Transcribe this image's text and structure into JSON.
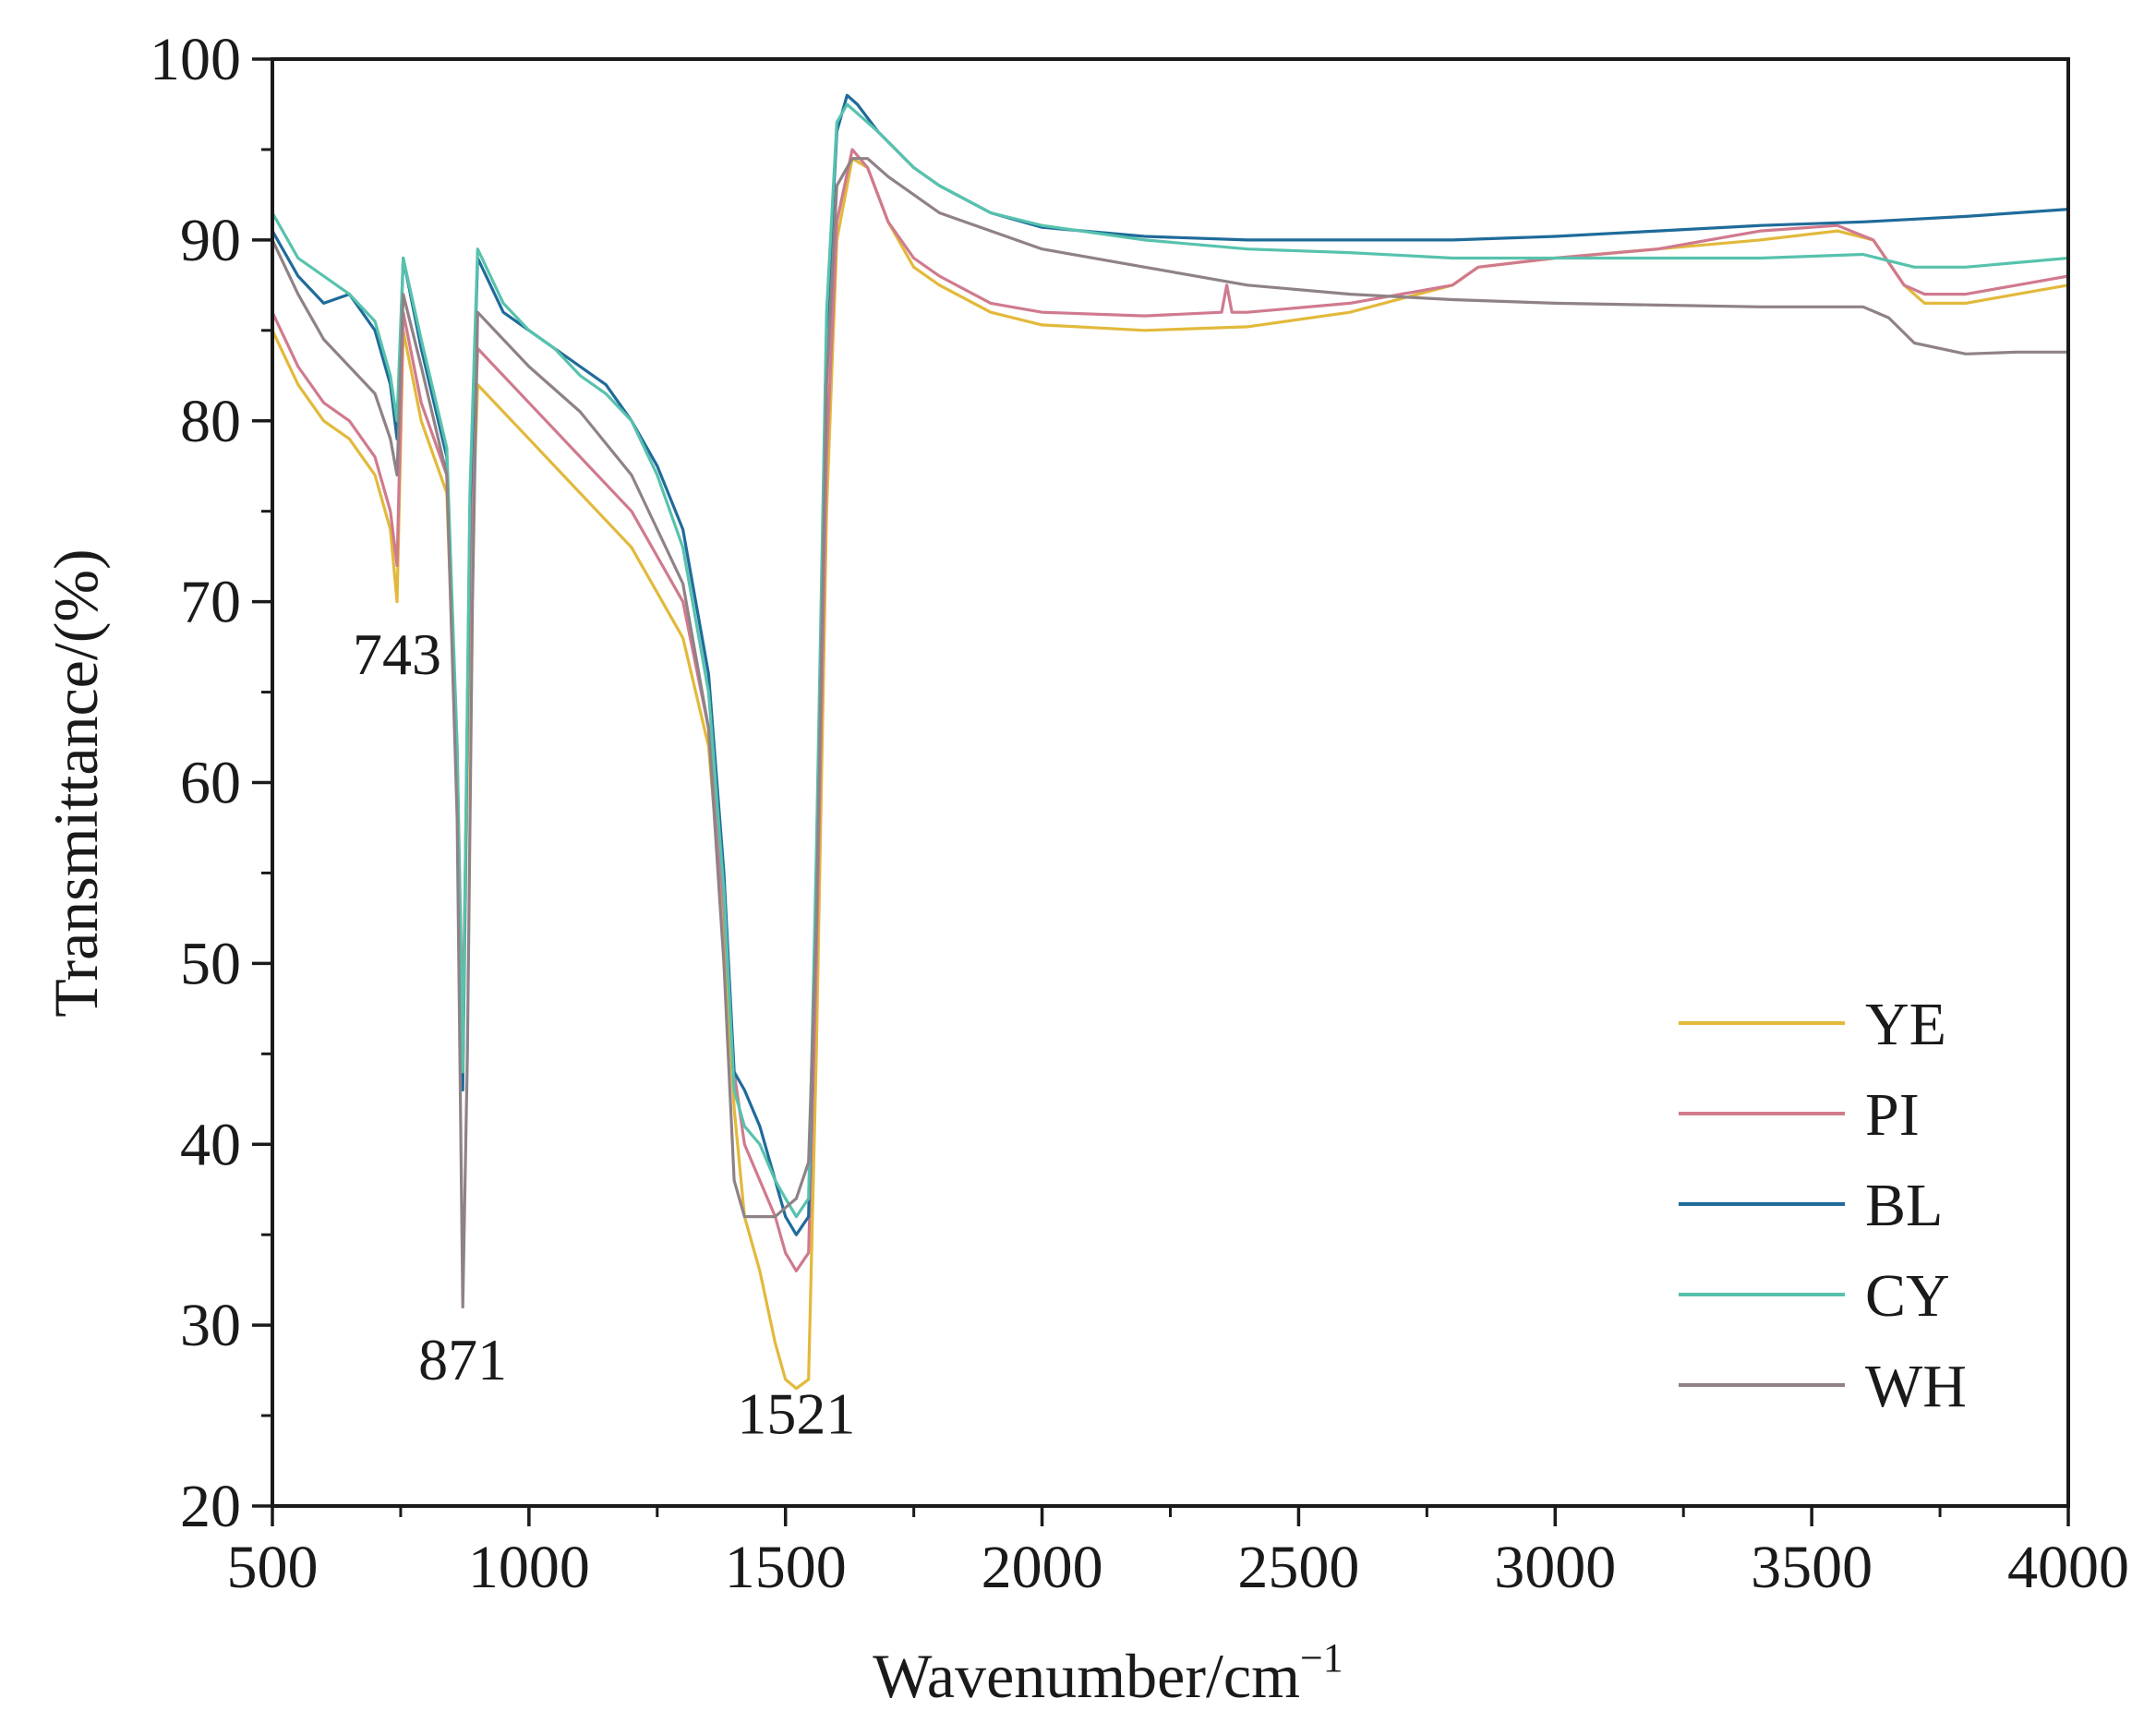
{
  "chart_data": {
    "type": "line",
    "title": "",
    "xlabel": "Wavenumber/cm",
    "xlabel_sup": "−1",
    "ylabel": "Transmittance/(%)",
    "xlim": [
      500,
      4000
    ],
    "ylim": [
      20,
      100
    ],
    "x_ticks": [
      "500",
      "1000",
      "1500",
      "2000",
      "2500",
      "3000",
      "3500",
      "4000"
    ],
    "y_ticks": [
      "20",
      "30",
      "40",
      "50",
      "60",
      "70",
      "80",
      "90",
      "100"
    ],
    "legend_position": "bottom-right",
    "annotations": [
      {
        "text": "743",
        "x": 743,
        "y": 66
      },
      {
        "text": "871",
        "x": 871,
        "y": 27
      },
      {
        "text": "1521",
        "x": 1521,
        "y": 24
      }
    ],
    "series": [
      {
        "name": "YE",
        "color": "#e2b93b",
        "x": [
          500,
          550,
          600,
          650,
          700,
          730,
          743,
          755,
          790,
          840,
          860,
          871,
          885,
          900,
          1000,
          1100,
          1200,
          1300,
          1350,
          1380,
          1400,
          1420,
          1450,
          1480,
          1500,
          1521,
          1545,
          1560,
          1580,
          1600,
          1630,
          1660,
          1700,
          1750,
          1800,
          1900,
          2000,
          2200,
          2400,
          2600,
          2800,
          2850,
          3000,
          3200,
          3400,
          3550,
          3620,
          3680,
          3720,
          3800,
          3900,
          4000
        ],
        "y": [
          85,
          82,
          80,
          79,
          77,
          74,
          70,
          85,
          80,
          76,
          60,
          44,
          70,
          82,
          79,
          76,
          73,
          68,
          62,
          52,
          42,
          36,
          33,
          29,
          27,
          26.5,
          27,
          45,
          75,
          90,
          94.5,
          94,
          91,
          88.5,
          87.5,
          86,
          85.3,
          85,
          85.2,
          86,
          87.5,
          88.5,
          89,
          89.5,
          90,
          90.5,
          90,
          87.5,
          86.5,
          86.5,
          87,
          87.5
        ]
      },
      {
        "name": "PI",
        "color": "#d07a8e",
        "x": [
          500,
          550,
          600,
          650,
          700,
          730,
          743,
          755,
          790,
          840,
          860,
          871,
          885,
          900,
          1000,
          1100,
          1200,
          1300,
          1350,
          1380,
          1400,
          1420,
          1450,
          1480,
          1500,
          1521,
          1545,
          1560,
          1580,
          1600,
          1630,
          1660,
          1700,
          1750,
          1800,
          1900,
          2000,
          2200,
          2350,
          2360,
          2370,
          2400,
          2600,
          2800,
          2850,
          3000,
          3200,
          3400,
          3550,
          3620,
          3680,
          3720,
          3800,
          3900,
          4000
        ],
        "y": [
          86,
          83,
          81,
          80,
          78,
          75,
          72,
          86,
          81,
          77,
          62,
          46,
          72,
          84,
          81,
          78,
          75,
          70,
          63,
          53,
          44,
          40,
          38,
          36,
          34,
          33,
          34,
          50,
          78,
          91,
          95,
          94,
          91,
          89,
          88,
          86.5,
          86,
          85.8,
          86,
          87.5,
          86,
          86,
          86.5,
          87.5,
          88.5,
          89,
          89.5,
          90.5,
          90.8,
          90,
          87.5,
          87,
          87,
          87.5,
          88
        ]
      },
      {
        "name": "BL",
        "color": "#1f6b9a",
        "x": [
          500,
          550,
          600,
          650,
          700,
          730,
          743,
          755,
          790,
          840,
          860,
          871,
          885,
          900,
          950,
          1000,
          1050,
          1100,
          1150,
          1200,
          1250,
          1300,
          1350,
          1380,
          1400,
          1420,
          1450,
          1480,
          1500,
          1521,
          1545,
          1560,
          1580,
          1600,
          1620,
          1640,
          1680,
          1750,
          1800,
          1900,
          2000,
          2200,
          2400,
          2600,
          2800,
          3000,
          3200,
          3400,
          3600,
          3800,
          4000
        ],
        "y": [
          90.5,
          88,
          86.5,
          87,
          85,
          82,
          79,
          89,
          84,
          78,
          60,
          43,
          75,
          89,
          86,
          85,
          84,
          83,
          82,
          80,
          77.5,
          74,
          66,
          55,
          44,
          43,
          41,
          38,
          36,
          35,
          36,
          55,
          85,
          96,
          98,
          97.5,
          96,
          94,
          93,
          91.5,
          90.7,
          90.2,
          90,
          90,
          90,
          90.2,
          90.5,
          90.8,
          91,
          91.3,
          91.7
        ]
      },
      {
        "name": "CY",
        "color": "#57c2ad",
        "x": [
          500,
          550,
          600,
          650,
          700,
          730,
          743,
          755,
          790,
          840,
          860,
          871,
          885,
          900,
          950,
          1000,
          1050,
          1100,
          1150,
          1200,
          1250,
          1300,
          1350,
          1380,
          1400,
          1420,
          1450,
          1480,
          1500,
          1521,
          1545,
          1560,
          1580,
          1600,
          1620,
          1640,
          1680,
          1750,
          1800,
          1900,
          2000,
          2200,
          2400,
          2600,
          2800,
          3000,
          3200,
          3400,
          3600,
          3700,
          3800,
          4000
        ],
        "y": [
          91.5,
          89,
          88,
          87,
          85.5,
          82.5,
          80,
          89,
          84.5,
          78.5,
          62,
          44,
          76,
          89.5,
          86.5,
          85,
          84,
          82.5,
          81.5,
          80,
          77,
          73,
          65,
          54,
          43,
          41,
          40,
          38,
          37,
          36,
          37,
          56,
          86,
          96.5,
          97.5,
          97,
          96,
          94,
          93,
          91.5,
          90.8,
          90,
          89.5,
          89.3,
          89,
          89,
          89,
          89,
          89.2,
          88.5,
          88.5,
          89
        ]
      },
      {
        "name": "WH",
        "color": "#8f8286",
        "x": [
          500,
          550,
          600,
          650,
          700,
          730,
          743,
          755,
          790,
          840,
          860,
          871,
          880,
          890,
          900,
          950,
          1000,
          1100,
          1200,
          1300,
          1350,
          1380,
          1400,
          1420,
          1450,
          1480,
          1500,
          1521,
          1545,
          1560,
          1580,
          1600,
          1630,
          1660,
          1700,
          1800,
          1900,
          2000,
          2200,
          2400,
          2600,
          2800,
          3000,
          3200,
          3400,
          3600,
          3650,
          3700,
          3800,
          3900,
          4000
        ],
        "y": [
          90,
          87,
          84.5,
          83,
          81.5,
          79,
          77,
          87,
          83,
          77,
          58,
          31,
          45,
          70,
          86,
          84.5,
          83,
          80.5,
          77,
          71,
          63,
          50,
          38,
          36,
          36,
          36,
          36.5,
          37,
          39,
          52,
          82,
          93,
          94.5,
          94.5,
          93.5,
          91.5,
          90.5,
          89.5,
          88.5,
          87.5,
          87,
          86.7,
          86.5,
          86.4,
          86.3,
          86.3,
          85.7,
          84.3,
          83.7,
          83.8,
          83.8
        ]
      }
    ]
  }
}
